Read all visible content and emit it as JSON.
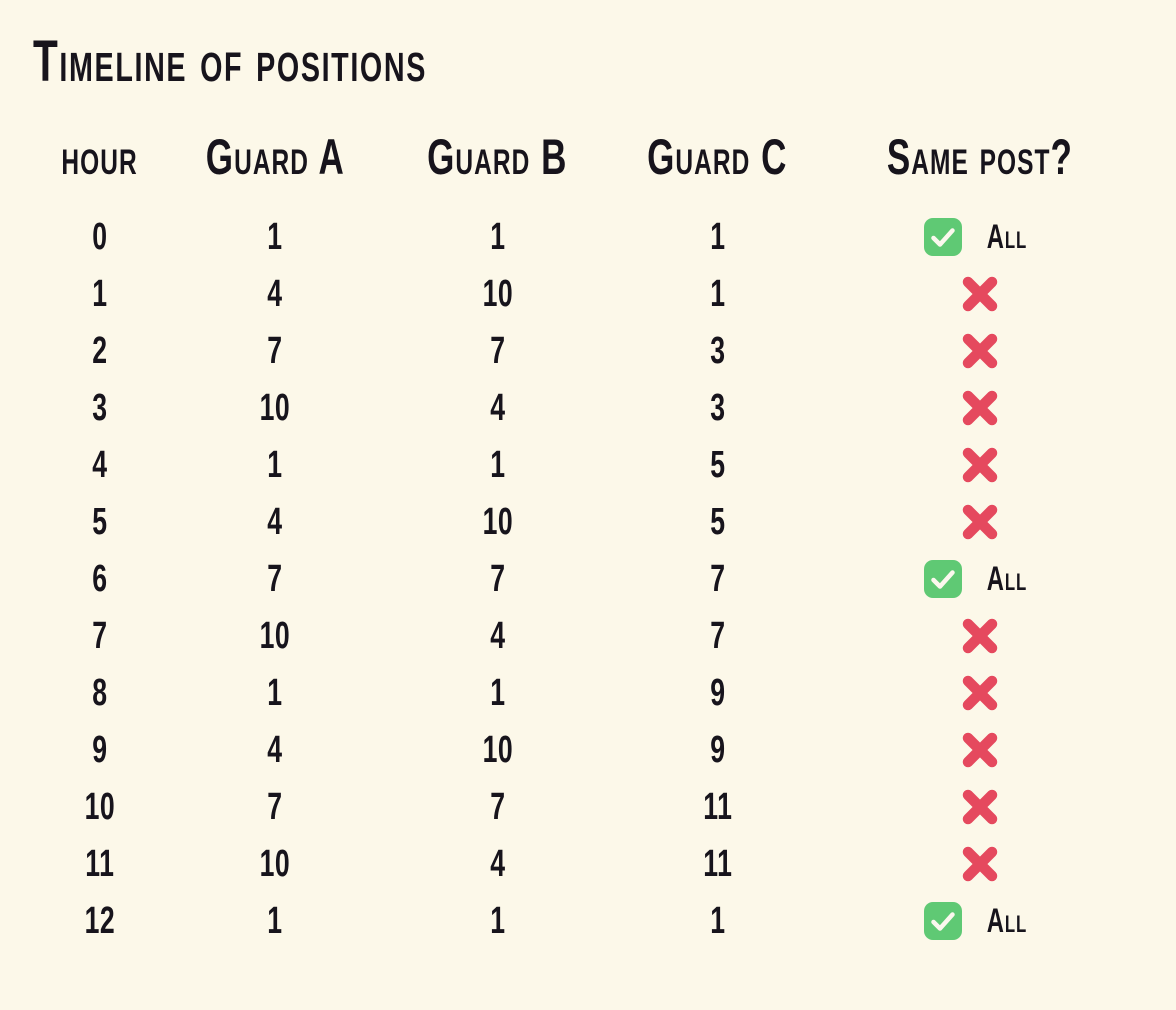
{
  "page": {
    "background_color": "#FCF8E9",
    "text_color": "#17141C"
  },
  "chart_data": {
    "type": "table",
    "title": "Timeline of positions",
    "columns": [
      "hour",
      "Guard A",
      "Guard B",
      "Guard C",
      "Same post?"
    ],
    "rows": [
      {
        "hour": "0",
        "guard_a": "1",
        "guard_b": "1",
        "guard_c": "1",
        "same_post": "All"
      },
      {
        "hour": "1",
        "guard_a": "4",
        "guard_b": "10",
        "guard_c": "1",
        "same_post": "X"
      },
      {
        "hour": "2",
        "guard_a": "7",
        "guard_b": "7",
        "guard_c": "3",
        "same_post": "X"
      },
      {
        "hour": "3",
        "guard_a": "10",
        "guard_b": "4",
        "guard_c": "3",
        "same_post": "X"
      },
      {
        "hour": "4",
        "guard_a": "1",
        "guard_b": "1",
        "guard_c": "5",
        "same_post": "X"
      },
      {
        "hour": "5",
        "guard_a": "4",
        "guard_b": "10",
        "guard_c": "5",
        "same_post": "X"
      },
      {
        "hour": "6",
        "guard_a": "7",
        "guard_b": "7",
        "guard_c": "7",
        "same_post": "All"
      },
      {
        "hour": "7",
        "guard_a": "10",
        "guard_b": "4",
        "guard_c": "7",
        "same_post": "X"
      },
      {
        "hour": "8",
        "guard_a": "1",
        "guard_b": "1",
        "guard_c": "9",
        "same_post": "X"
      },
      {
        "hour": "9",
        "guard_a": "4",
        "guard_b": "10",
        "guard_c": "9",
        "same_post": "X"
      },
      {
        "hour": "10",
        "guard_a": "7",
        "guard_b": "7",
        "guard_c": "11",
        "same_post": "X"
      },
      {
        "hour": "11",
        "guard_a": "10",
        "guard_b": "4",
        "guard_c": "11",
        "same_post": "X"
      },
      {
        "hour": "12",
        "guard_a": "1",
        "guard_b": "1",
        "guard_c": "1",
        "same_post": "All"
      }
    ]
  },
  "labels": {
    "all": "All"
  },
  "icons": {
    "match": "check-icon",
    "mismatch": "x-icon"
  },
  "colors": {
    "check_green": "#5FC974",
    "check_mark": "#FBF8EE",
    "cross_red": "#E5495E"
  }
}
